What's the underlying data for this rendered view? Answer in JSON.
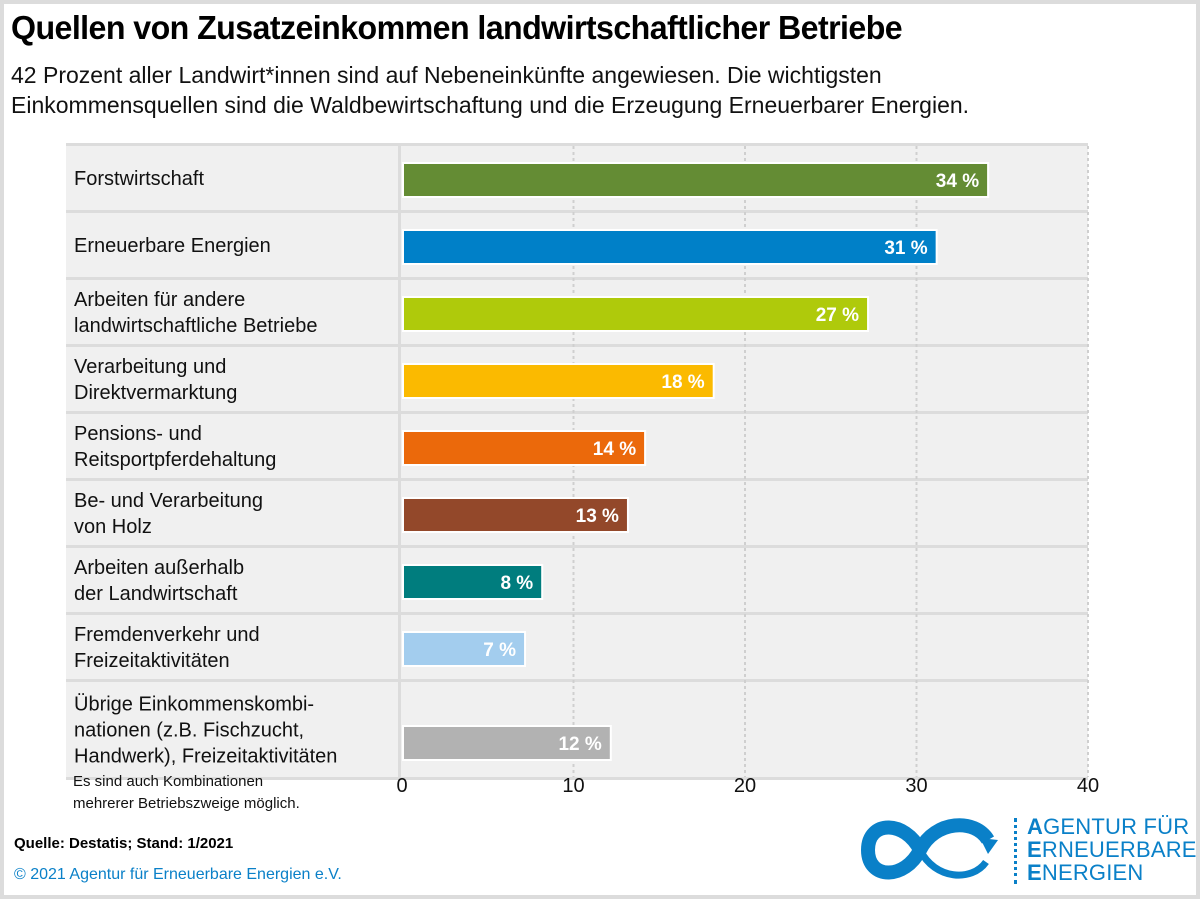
{
  "title": "Quellen von Zusatzeinkommen landwirtschaftlicher Betriebe",
  "subtitle_lines": [
    "42 Prozent aller Landwirt*innen sind auf Nebeneinkünfte angewiesen. Die wichtigsten",
    "Einkommensquellen sind die Waldbewirtschaftung und die Erzeugung Erneuerbarer Energien."
  ],
  "note_lines": [
    "Es sind auch Kombinationen",
    "mehrerer Betriebszweige möglich."
  ],
  "source": "Quelle: Destatis; Stand: 1/2021",
  "copyright": "© 2021 Agentur für Erneuerbare Energien e.V.",
  "logo": {
    "icon": "infinity-arrow-icon",
    "lines": [
      {
        "cap": "A",
        "rest": "GENTUR FÜR"
      },
      {
        "cap": "E",
        "rest": "RNEUERBARE"
      },
      {
        "cap": "E",
        "rest": "NERGIEN"
      }
    ],
    "color": "#0a80c8"
  },
  "chart_data": {
    "type": "bar",
    "orientation": "horizontal",
    "title": "Quellen von Zusatzeinkommen landwirtschaftlicher Betriebe",
    "xlabel": "",
    "ylabel": "",
    "unit": "%",
    "xlim": [
      0,
      40
    ],
    "xticks": [
      0,
      10,
      20,
      30,
      40
    ],
    "grid": true,
    "categories": [
      [
        "Forstwirtschaft"
      ],
      [
        "Erneuerbare Energien"
      ],
      [
        "Arbeiten für andere",
        "landwirtschaftliche Betriebe"
      ],
      [
        "Verarbeitung und",
        "Direktvermarktung"
      ],
      [
        "Pensions- und",
        "Reitsportpferdehaltung"
      ],
      [
        "Be- und Verarbeitung",
        "von Holz"
      ],
      [
        "Arbeiten außerhalb",
        "der Landwirtschaft"
      ],
      [
        "Fremdenverkehr und",
        "Freizeitaktivitäten"
      ],
      [
        "Übrige Einkommenskombi-",
        "nationen (z.B. Fischzucht,",
        "Handwerk), Freizeitaktivitäten"
      ]
    ],
    "values": [
      34,
      31,
      27,
      18,
      14,
      13,
      8,
      7,
      12
    ],
    "value_labels": [
      "34 %",
      "31 %",
      "27 %",
      "18 %",
      "14 %",
      "13 %",
      "8 %",
      "7 %",
      "12 %"
    ],
    "colors": [
      "#648c34",
      "#0080c8",
      "#afca0b",
      "#fbba00",
      "#eb690b",
      "#93482a",
      "#007d7e",
      "#a3cdee",
      "#b2b2b2"
    ]
  }
}
